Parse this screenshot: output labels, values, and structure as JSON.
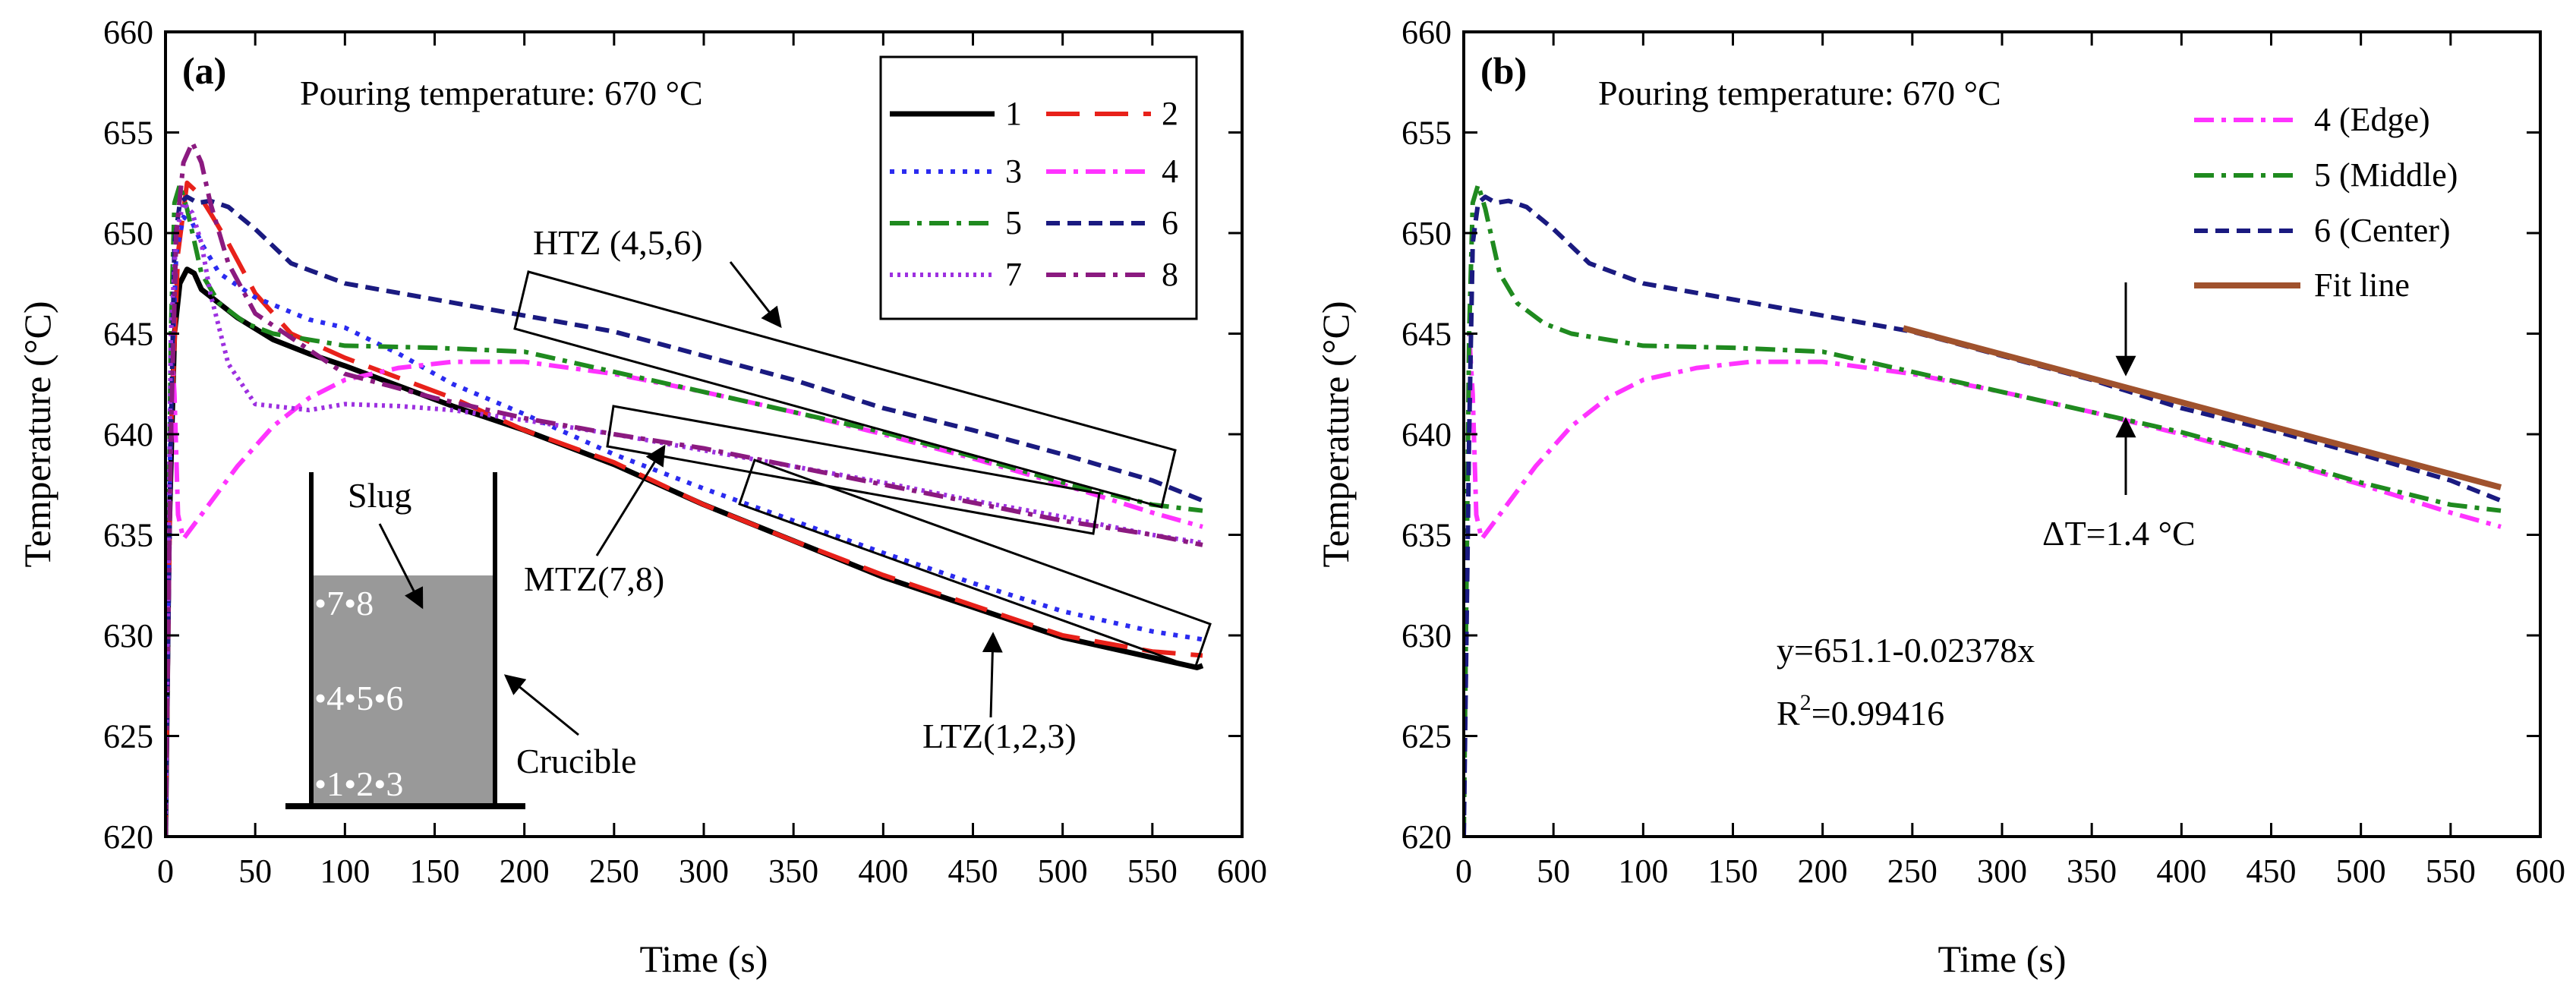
{
  "chart_data": [
    {
      "type": "line",
      "panel_label": "(a)",
      "title": "Pouring temperature: 670 °C",
      "xlabel": "Time (s)",
      "ylabel": "Temperature (°C)",
      "xlim": [
        0,
        600
      ],
      "ylim": [
        620,
        660
      ],
      "xticks": [
        0,
        50,
        100,
        150,
        200,
        250,
        300,
        350,
        400,
        450,
        500,
        550,
        600
      ],
      "yticks": [
        620,
        625,
        630,
        635,
        640,
        645,
        650,
        655,
        660
      ],
      "grid": false,
      "legend_position": "top-right",
      "series": [
        {
          "name": "1",
          "color": "#000000",
          "dash": "solid",
          "x": [
            0,
            2,
            5,
            8,
            12,
            16,
            20,
            30,
            40,
            60,
            80,
            100,
            130,
            160,
            200,
            250,
            300,
            350,
            400,
            450,
            500,
            550,
            575,
            578
          ],
          "y": [
            620,
            635,
            645,
            647.5,
            648.2,
            648.0,
            647.2,
            646.5,
            645.8,
            644.7,
            644.0,
            643.4,
            642.4,
            641.4,
            640.2,
            638.5,
            636.5,
            634.7,
            632.9,
            631.4,
            629.9,
            628.9,
            628.4,
            628.5
          ]
        },
        {
          "name": "2",
          "color": "#e8211a",
          "dash": "longdash",
          "x": [
            0,
            3,
            7,
            12,
            18,
            25,
            35,
            50,
            70,
            100,
            130,
            160,
            200,
            250,
            300,
            350,
            400,
            450,
            500,
            550,
            578
          ],
          "y": [
            620,
            640,
            649,
            652.5,
            652.0,
            651.0,
            649.5,
            647.0,
            645.0,
            643.8,
            642.8,
            641.8,
            640.2,
            638.6,
            636.5,
            634.7,
            633.0,
            631.5,
            630.0,
            629.2,
            629.0
          ]
        },
        {
          "name": "3",
          "color": "#2b2bf0",
          "dash": "dot",
          "x": [
            0,
            3,
            6,
            10,
            15,
            20,
            30,
            50,
            80,
            100,
            130,
            160,
            200,
            250,
            300,
            350,
            400,
            450,
            500,
            550,
            578
          ],
          "y": [
            620,
            642,
            649,
            650.8,
            650.5,
            649.5,
            648.0,
            646.8,
            645.7,
            645.3,
            644.0,
            642.5,
            641.0,
            639.0,
            637.3,
            635.7,
            634.1,
            632.6,
            631.2,
            630.2,
            629.8
          ]
        },
        {
          "name": "4",
          "color": "#ff33ff",
          "dash": "dashdot",
          "x": [
            0,
            3,
            5,
            7,
            10,
            15,
            25,
            40,
            60,
            80,
            100,
            130,
            160,
            200,
            250,
            300,
            350,
            400,
            450,
            500,
            550,
            578
          ],
          "y": [
            620,
            645,
            642,
            636,
            634.8,
            635.4,
            636.6,
            638.4,
            640.4,
            641.8,
            642.7,
            643.3,
            643.6,
            643.6,
            643.0,
            642.1,
            641.1,
            640.0,
            638.8,
            637.5,
            636.1,
            635.4
          ]
        },
        {
          "name": "5",
          "color": "#1f8a1f",
          "dash": "dashdot",
          "x": [
            0,
            3,
            5,
            8,
            12,
            20,
            30,
            45,
            60,
            80,
            100,
            150,
            200,
            250,
            300,
            350,
            400,
            450,
            500,
            550,
            578
          ],
          "y": [
            620,
            645,
            651.5,
            652.4,
            651.2,
            648.0,
            646.5,
            645.5,
            645.0,
            644.7,
            644.4,
            644.3,
            644.1,
            643.1,
            642.1,
            641.1,
            640.1,
            638.9,
            637.6,
            636.5,
            636.2
          ]
        },
        {
          "name": "6",
          "color": "#1a1a80",
          "dash": "dash",
          "x": [
            0,
            3,
            5,
            8,
            12,
            18,
            25,
            35,
            50,
            70,
            100,
            150,
            200,
            250,
            300,
            350,
            400,
            450,
            500,
            550,
            578
          ],
          "y": [
            620,
            640,
            649.5,
            651.5,
            651.8,
            651.5,
            651.6,
            651.3,
            650.2,
            648.5,
            647.5,
            646.7,
            645.9,
            645.1,
            643.9,
            642.7,
            641.3,
            640.2,
            639.0,
            637.7,
            636.7
          ]
        },
        {
          "name": "7",
          "color": "#9d30e0",
          "dash": "densedot",
          "x": [
            0,
            3,
            6,
            10,
            15,
            20,
            25,
            35,
            50,
            80,
            100,
            130,
            160,
            200,
            250,
            300,
            350,
            400,
            450,
            500,
            550,
            578
          ],
          "y": [
            620,
            645,
            650,
            651.5,
            651.0,
            649.5,
            647.0,
            643.5,
            641.5,
            641.2,
            641.5,
            641.4,
            641.2,
            640.7,
            640.0,
            639.2,
            638.4,
            637.6,
            636.7,
            635.9,
            635.0,
            634.6
          ]
        },
        {
          "name": "8",
          "color": "#8b1a80",
          "dash": "dashdot",
          "x": [
            0,
            3,
            6,
            10,
            15,
            20,
            25,
            35,
            50,
            80,
            100,
            150,
            200,
            250,
            300,
            350,
            400,
            450,
            500,
            550,
            578
          ],
          "y": [
            620,
            640,
            650,
            653.5,
            654.5,
            653.5,
            651.5,
            648.5,
            646.0,
            644.2,
            643.0,
            641.8,
            640.8,
            640.0,
            639.3,
            638.4,
            637.5,
            636.6,
            635.7,
            635.0,
            634.5
          ]
        }
      ],
      "annotations": {
        "htz": "HTZ (4,5,6)",
        "mtz": "MTZ(7,8)",
        "ltz": "LTZ(1,2,3)",
        "slug": "Slug",
        "crucible": "Crucible",
        "row1": "•7•8",
        "row2": "•4•5•6",
        "row3": "•1•2•3"
      }
    },
    {
      "type": "line",
      "panel_label": "(b)",
      "title": "Pouring temperature: 670 °C",
      "xlabel": "Time (s)",
      "ylabel": "Temperature (°C)",
      "xlim": [
        0,
        600
      ],
      "ylim": [
        620,
        660
      ],
      "xticks": [
        0,
        50,
        100,
        150,
        200,
        250,
        300,
        350,
        400,
        450,
        500,
        550,
        600
      ],
      "yticks": [
        620,
        625,
        630,
        635,
        640,
        645,
        650,
        655,
        660
      ],
      "grid": false,
      "legend_position": "top-right",
      "series": [
        {
          "name": "4 (Edge)",
          "color": "#ff33ff",
          "dash": "dashdot",
          "x": [
            0,
            3,
            5,
            7,
            10,
            15,
            25,
            40,
            60,
            80,
            100,
            130,
            160,
            200,
            250,
            300,
            350,
            400,
            450,
            500,
            550,
            578
          ],
          "y": [
            620,
            645,
            642,
            636,
            634.8,
            635.4,
            636.6,
            638.4,
            640.4,
            641.8,
            642.7,
            643.3,
            643.6,
            643.6,
            643.0,
            642.1,
            641.1,
            640.0,
            638.8,
            637.5,
            636.1,
            635.4
          ]
        },
        {
          "name": "5 (Middle)",
          "color": "#1f8a1f",
          "dash": "dashdot",
          "x": [
            0,
            3,
            5,
            8,
            12,
            20,
            30,
            45,
            60,
            80,
            100,
            150,
            200,
            250,
            300,
            350,
            400,
            450,
            500,
            550,
            578
          ],
          "y": [
            620,
            645,
            651.5,
            652.4,
            651.2,
            648.0,
            646.5,
            645.5,
            645.0,
            644.7,
            644.4,
            644.3,
            644.1,
            643.1,
            642.1,
            641.1,
            640.1,
            638.9,
            637.6,
            636.5,
            636.2
          ]
        },
        {
          "name": "6 (Center)",
          "color": "#1a1a80",
          "dash": "dash",
          "x": [
            0,
            3,
            5,
            8,
            12,
            18,
            25,
            35,
            50,
            70,
            100,
            150,
            200,
            250,
            300,
            350,
            400,
            450,
            500,
            550,
            578
          ],
          "y": [
            620,
            640,
            649.5,
            651.5,
            651.8,
            651.5,
            651.6,
            651.3,
            650.2,
            648.5,
            647.5,
            646.7,
            645.9,
            645.1,
            643.9,
            642.7,
            641.3,
            640.2,
            639.0,
            637.7,
            636.7
          ]
        },
        {
          "name": "Fit line",
          "color": "#a0522d",
          "dash": "solid",
          "x": [
            245,
            578
          ],
          "y": [
            645.27,
            637.36
          ]
        }
      ],
      "annotations": {
        "delta": "ΔT=1.4 °C",
        "eq": "y=651.1-0.02378x",
        "r2_base": "R",
        "r2_sup": "2",
        "r2_val": "=0.99416"
      }
    }
  ]
}
